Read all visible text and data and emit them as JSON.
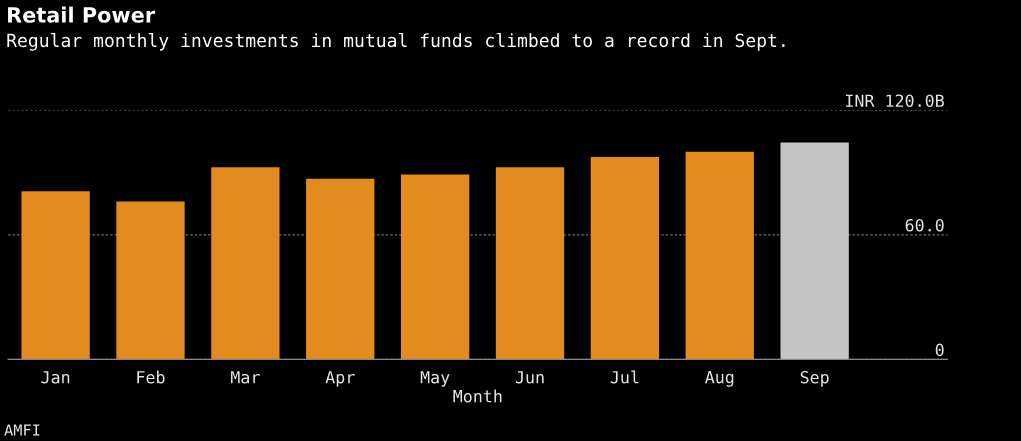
{
  "chart_data": {
    "type": "bar",
    "title": "Retail Power",
    "subtitle": "Regular monthly investments in mutual funds climbed to a record in Sept.",
    "xlabel": "Month",
    "categories": [
      "Jan",
      "Feb",
      "Mar",
      "Apr",
      "May",
      "Jun",
      "Jul",
      "Aug",
      "Sep"
    ],
    "values": [
      81,
      76,
      92.5,
      87,
      89,
      92.5,
      97.5,
      100,
      104.5
    ],
    "colors": [
      "#e38b1f",
      "#e38b1f",
      "#e38b1f",
      "#e38b1f",
      "#e38b1f",
      "#e38b1f",
      "#e38b1f",
      "#e38b1f",
      "#c4c4c4"
    ],
    "ylim": [
      0,
      120
    ],
    "yticks": [
      0,
      {
        "value": 60,
        "label": "60.0"
      },
      {
        "value": 120,
        "label": "INR 120.0B"
      }
    ],
    "grid": "y",
    "annotations": [
      "AMFI"
    ]
  }
}
